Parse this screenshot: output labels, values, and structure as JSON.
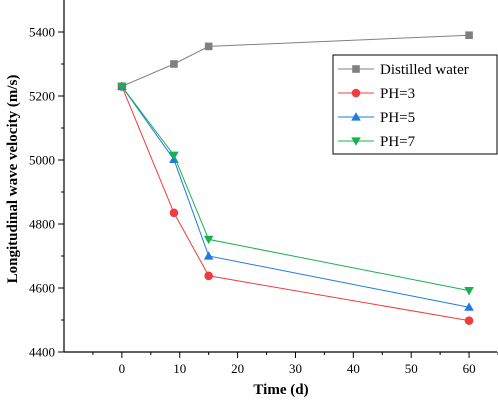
{
  "chart_data": {
    "type": "line",
    "xlabel": "Time (d)",
    "ylabel": "Longitudinal wave velocity (m/s)",
    "xlim": [
      -10,
      65
    ],
    "ylim": [
      4400,
      5500
    ],
    "xticks": [
      0,
      10,
      20,
      30,
      40,
      50,
      60
    ],
    "yticks": [
      4400,
      4600,
      4800,
      5000,
      5200,
      5400
    ],
    "legend_position": "top-right",
    "grid": false,
    "series": [
      {
        "name": "Distilled water",
        "color": "#808080",
        "marker": "square",
        "x": [
          0,
          9,
          15,
          60
        ],
        "y": [
          5230,
          5300,
          5355,
          5390
        ]
      },
      {
        "name": "PH=3",
        "color": "#f03c3c",
        "marker": "circle",
        "x": [
          0,
          9,
          15,
          60
        ],
        "y": [
          5230,
          4835,
          4638,
          4498
        ]
      },
      {
        "name": "PH=5",
        "color": "#1f7be0",
        "marker": "triangle-up",
        "x": [
          0,
          9,
          15,
          60
        ],
        "y": [
          5230,
          5002,
          4700,
          4540
        ]
      },
      {
        "name": "PH=7",
        "color": "#19b050",
        "marker": "triangle-down",
        "x": [
          0,
          9,
          15,
          60
        ],
        "y": [
          5230,
          5015,
          4752,
          4592
        ]
      }
    ]
  }
}
